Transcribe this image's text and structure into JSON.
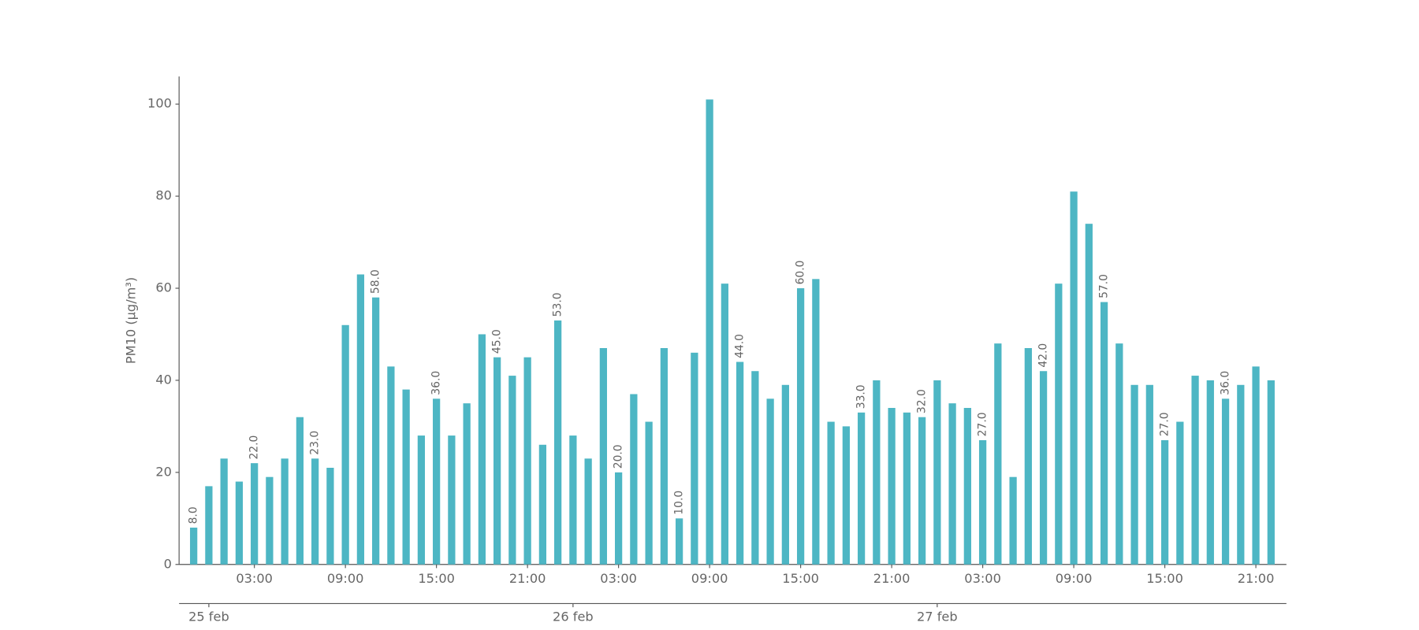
{
  "chart_data": {
    "type": "bar",
    "y_label": "PM10 (μg/m³)",
    "color": "#4db6c4",
    "ylim": [
      0,
      106
    ],
    "yticks": [
      0,
      20,
      40,
      60,
      80,
      100
    ],
    "categories": [
      null,
      null,
      null,
      null,
      "03:00",
      null,
      null,
      null,
      null,
      null,
      "09:00",
      null,
      null,
      null,
      null,
      null,
      "15:00",
      null,
      null,
      null,
      null,
      null,
      "21:00",
      null,
      null,
      null,
      null,
      null,
      "03:00",
      null,
      null,
      null,
      null,
      null,
      "09:00",
      null,
      null,
      null,
      null,
      null,
      "15:00",
      null,
      null,
      null,
      null,
      null,
      "21:00",
      null,
      null,
      null,
      null,
      null,
      "03:00",
      null,
      null,
      null,
      null,
      null,
      "09:00",
      null,
      null,
      null,
      null,
      null,
      "15:00",
      null,
      null,
      null,
      null,
      null,
      "21:00",
      null
    ],
    "day_labels": [
      null,
      "25 feb",
      null,
      null,
      null,
      null,
      null,
      null,
      null,
      null,
      null,
      null,
      null,
      null,
      null,
      null,
      null,
      null,
      null,
      null,
      null,
      null,
      null,
      null,
      null,
      "26 feb",
      null,
      null,
      null,
      null,
      null,
      null,
      null,
      null,
      null,
      null,
      null,
      null,
      null,
      null,
      null,
      null,
      null,
      null,
      null,
      null,
      null,
      null,
      null,
      "27 feb",
      null,
      null,
      null,
      null,
      null,
      null,
      null,
      null,
      null,
      null,
      null,
      null,
      null,
      null,
      null,
      null,
      null,
      null,
      null,
      null,
      null,
      null
    ],
    "values": [
      8,
      17,
      23,
      18,
      22,
      19,
      23,
      32,
      23,
      21,
      52,
      63,
      58,
      43,
      38,
      28,
      36,
      28,
      35,
      50,
      45,
      41,
      45,
      26,
      53,
      28,
      23,
      47,
      20,
      37,
      31,
      47,
      10,
      46,
      101,
      61,
      44,
      42,
      36,
      39,
      60,
      62,
      31,
      30,
      33,
      40,
      34,
      33,
      32,
      40,
      35,
      34,
      27,
      48,
      19,
      47,
      42,
      61,
      81,
      74,
      57,
      48,
      39,
      39,
      27,
      31,
      41,
      40,
      36,
      39,
      43,
      40
    ],
    "value_labels": [
      "8.0",
      null,
      null,
      null,
      "22.0",
      null,
      null,
      null,
      "23.0",
      null,
      null,
      null,
      "58.0",
      null,
      null,
      null,
      "36.0",
      null,
      null,
      null,
      "45.0",
      null,
      null,
      null,
      "53.0",
      null,
      null,
      null,
      "20.0",
      null,
      null,
      null,
      "10.0",
      null,
      null,
      null,
      "44.0",
      null,
      null,
      null,
      "60.0",
      null,
      null,
      null,
      "33.0",
      null,
      null,
      null,
      "32.0",
      null,
      null,
      null,
      "27.0",
      null,
      null,
      null,
      "42.0",
      null,
      null,
      null,
      "57.0",
      null,
      null,
      null,
      "27.0",
      null,
      null,
      null,
      "36.0",
      null,
      null,
      null
    ]
  }
}
